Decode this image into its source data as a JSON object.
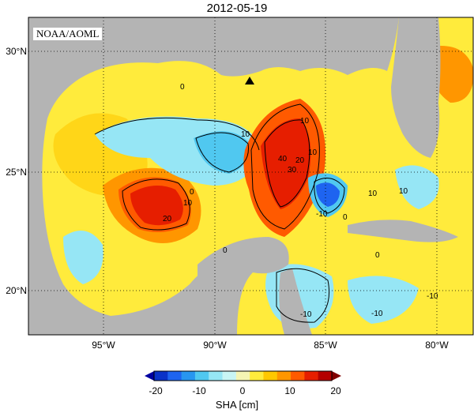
{
  "title": "2012-05-19",
  "agency_label": "NOAA/AOML",
  "map": {
    "lon_range": [
      -98,
      -78
    ],
    "lat_range": [
      18,
      31
    ],
    "lat_ticks": [
      "30°N",
      "25°N",
      "20°N"
    ],
    "lon_ticks": [
      "95°W",
      "90°W",
      "85°W",
      "80°W"
    ],
    "land_color": "#b4b4b4",
    "marker": "triangle-marker"
  },
  "contour_labels": [
    "0",
    "10",
    "10",
    "10",
    "40",
    "30",
    "20",
    "0",
    "0",
    "10",
    "-10",
    "10",
    "0",
    "10",
    "20",
    "0",
    "-10",
    "-10",
    "-10"
  ],
  "colorbar": {
    "ticks": [
      "-20",
      "-10",
      "0",
      "10",
      "20"
    ],
    "label": "SHA [cm]",
    "colors": [
      "#0a32c8",
      "#1e64f0",
      "#2896f0",
      "#50c8f0",
      "#96e6f5",
      "#c8f5f5",
      "#f5f5b4",
      "#ffeb3c",
      "#ffc800",
      "#ff9600",
      "#ff5a00",
      "#e61e00",
      "#b40000"
    ]
  }
}
